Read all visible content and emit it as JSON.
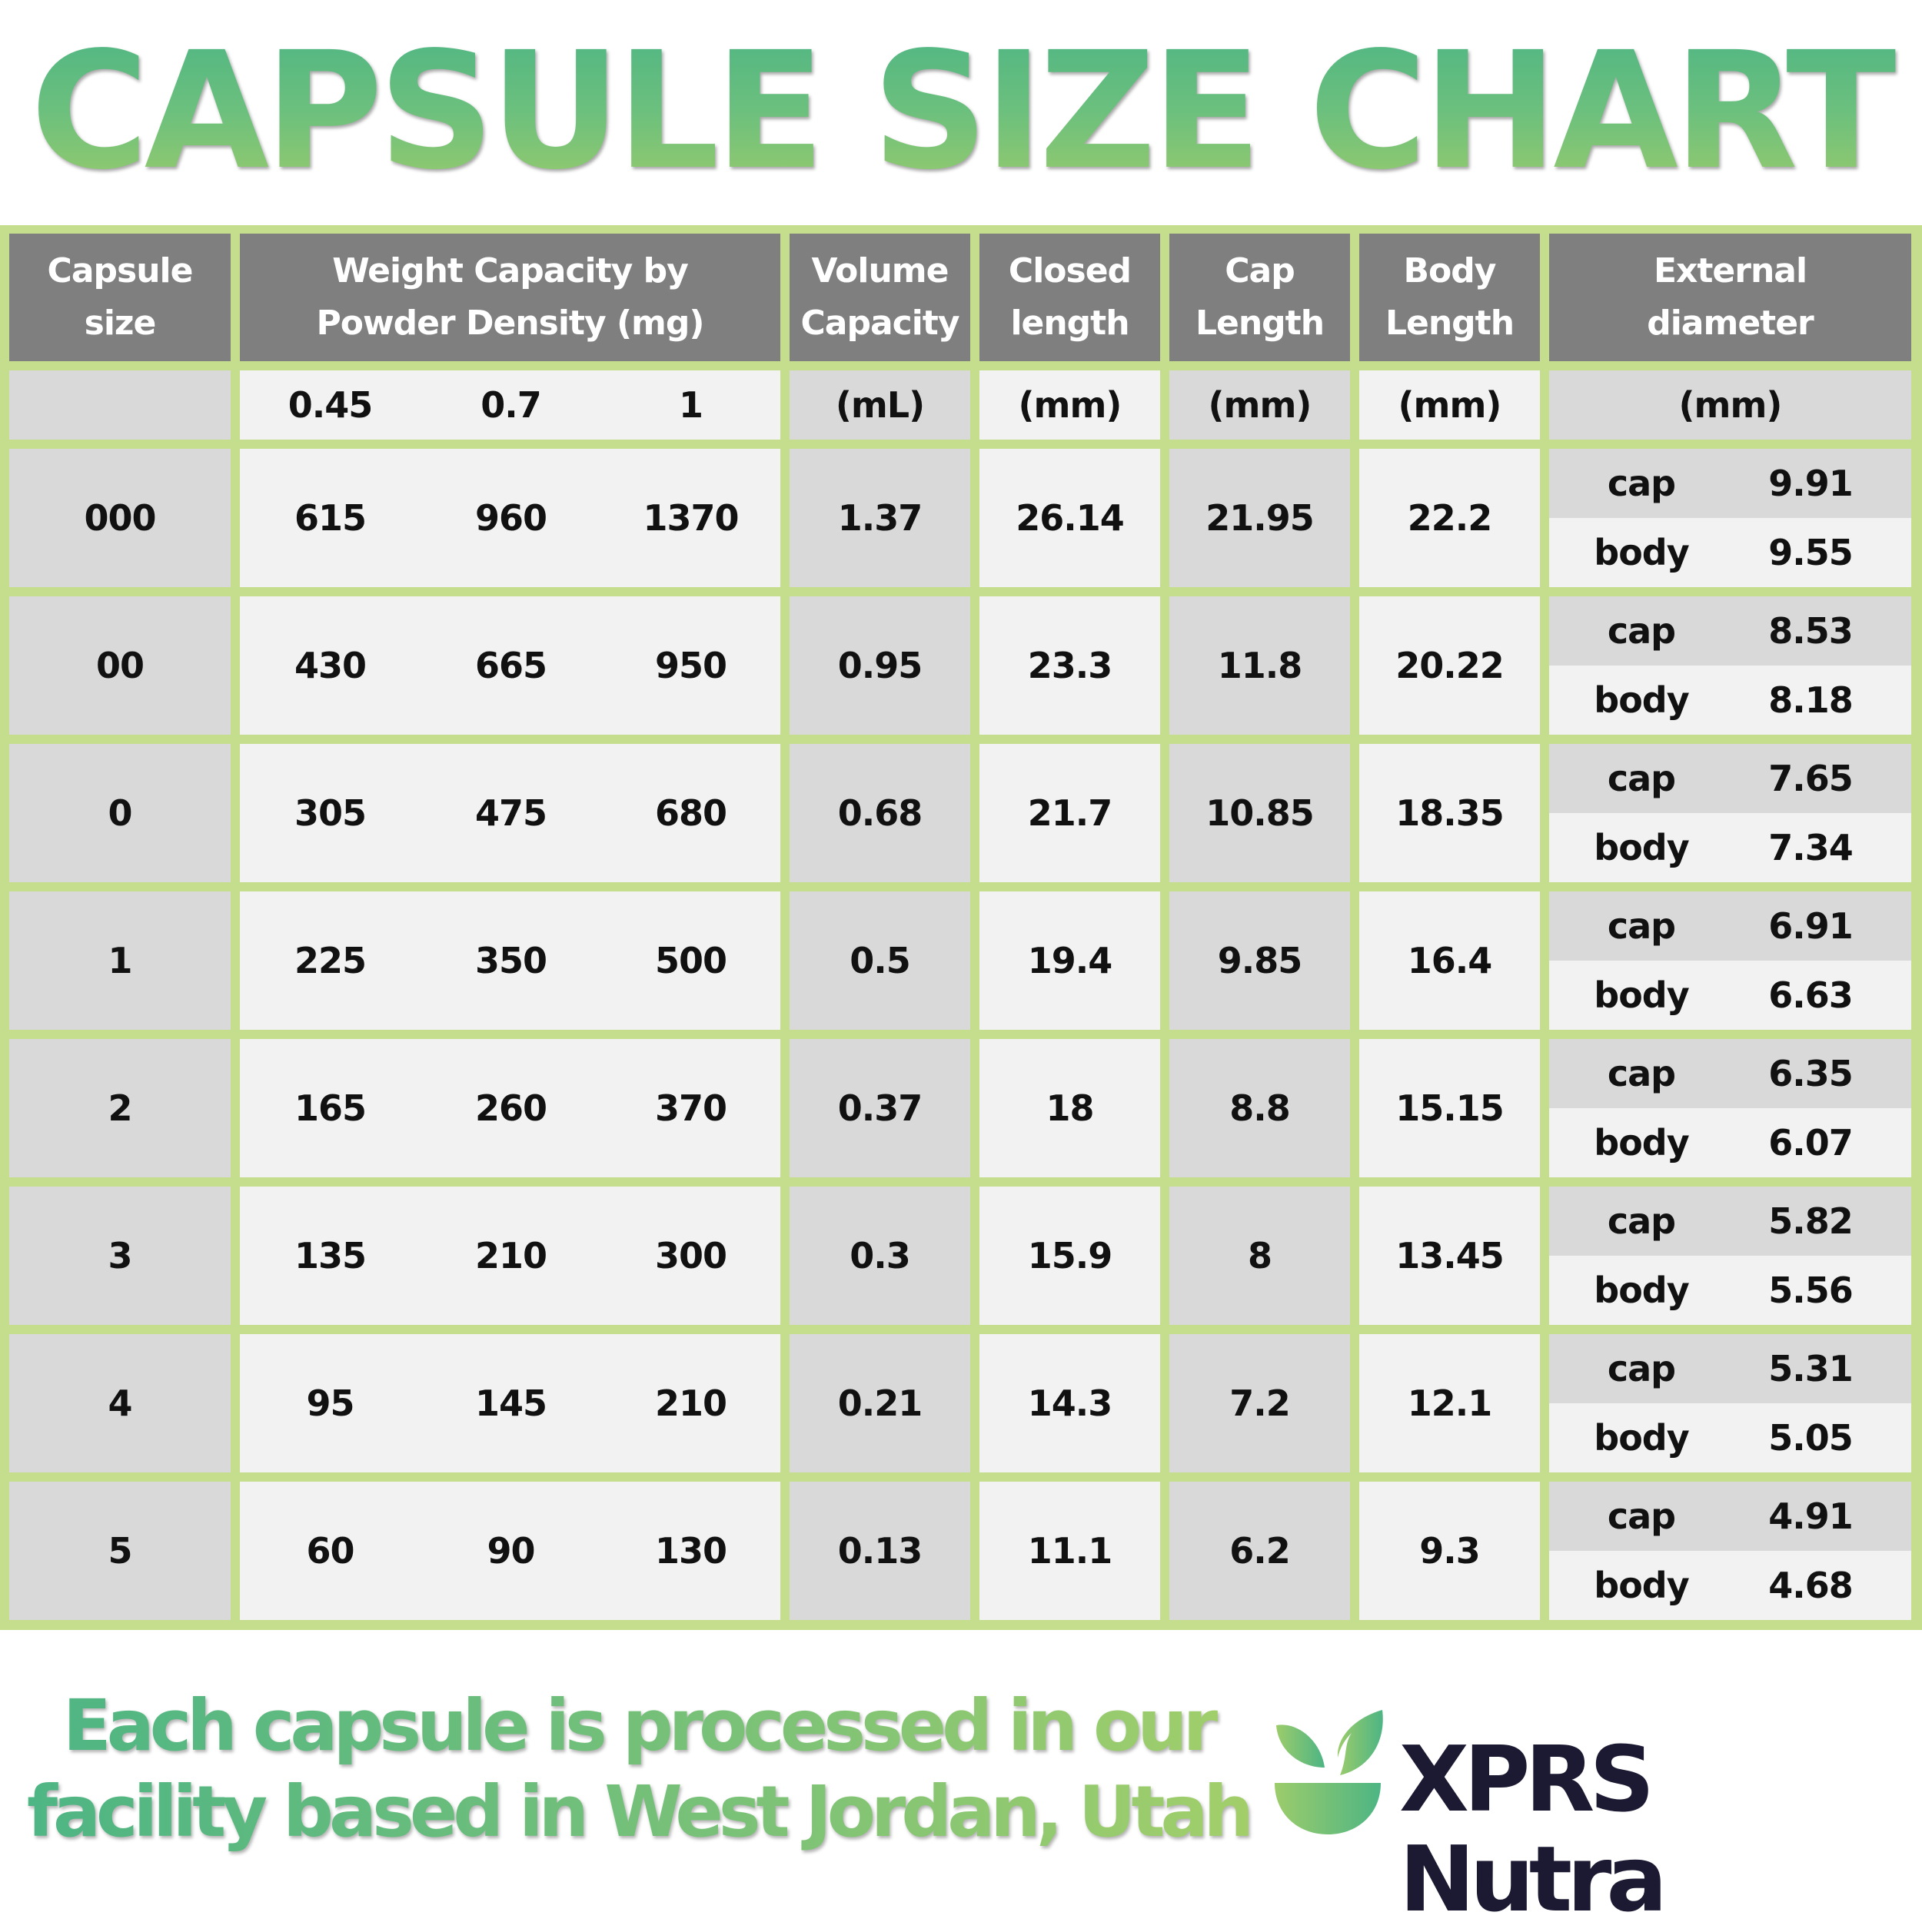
{
  "title": "CAPSULE SIZE CHART",
  "colors": {
    "border_green": "#c4de8d",
    "header_gray": "#7f7f7f",
    "cell_dark": "#d9d9d9",
    "cell_light": "#f2f2f2",
    "title_gradient_top": "#4db584",
    "title_gradient_bottom": "#9ccc6b",
    "brand_navy": "#1c1a33"
  },
  "headers": {
    "capsule_size": "Capsule size",
    "weight_line1": "Weight Capacity by",
    "weight_line2": "Powder Density (mg)",
    "volume_line1": "Volume",
    "volume_line2": "Capacity",
    "closed_line1": "Closed",
    "closed_line2": "length",
    "cap_line1": "Cap",
    "cap_line2": "Length",
    "body_line1": "Body",
    "body_line2": "Length",
    "diam_line1": "External",
    "diam_line2": "diameter"
  },
  "units": {
    "capsule_size": "",
    "density_1": "0.45",
    "density_2": "0.7",
    "density_3": "1",
    "volume": "(mL)",
    "closed": "(mm)",
    "cap": "(mm)",
    "body": "(mm)",
    "diam": "(mm)"
  },
  "labels": {
    "cap": "cap",
    "body": "body"
  },
  "rows": [
    {
      "size": "000",
      "w045": "615",
      "w07": "960",
      "w1": "1370",
      "vol": "1.37",
      "closed": "26.14",
      "cap_len": "21.95",
      "body_len": "22.2",
      "diam_cap": "9.91",
      "diam_body": "9.55"
    },
    {
      "size": "00",
      "w045": "430",
      "w07": "665",
      "w1": "950",
      "vol": "0.95",
      "closed": "23.3",
      "cap_len": "11.8",
      "body_len": "20.22",
      "diam_cap": "8.53",
      "diam_body": "8.18"
    },
    {
      "size": "0",
      "w045": "305",
      "w07": "475",
      "w1": "680",
      "vol": "0.68",
      "closed": "21.7",
      "cap_len": "10.85",
      "body_len": "18.35",
      "diam_cap": "7.65",
      "diam_body": "7.34"
    },
    {
      "size": "1",
      "w045": "225",
      "w07": "350",
      "w1": "500",
      "vol": "0.5",
      "closed": "19.4",
      "cap_len": "9.85",
      "body_len": "16.4",
      "diam_cap": "6.91",
      "diam_body": "6.63"
    },
    {
      "size": "2",
      "w045": "165",
      "w07": "260",
      "w1": "370",
      "vol": "0.37",
      "closed": "18",
      "cap_len": "8.8",
      "body_len": "15.15",
      "diam_cap": "6.35",
      "diam_body": "6.07"
    },
    {
      "size": "3",
      "w045": "135",
      "w07": "210",
      "w1": "300",
      "vol": "0.3",
      "closed": "15.9",
      "cap_len": "8",
      "body_len": "13.45",
      "diam_cap": "5.82",
      "diam_body": "5.56"
    },
    {
      "size": "4",
      "w045": "95",
      "w07": "145",
      "w1": "210",
      "vol": "0.21",
      "closed": "14.3",
      "cap_len": "7.2",
      "body_len": "12.1",
      "diam_cap": "5.31",
      "diam_body": "5.05"
    },
    {
      "size": "5",
      "w045": "60",
      "w07": "90",
      "w1": "130",
      "vol": "0.13",
      "closed": "11.1",
      "cap_len": "6.2",
      "body_len": "9.3",
      "diam_cap": "4.91",
      "diam_body": "4.68"
    }
  ],
  "footer": {
    "line1": "Each capsule is processed in our",
    "line2": "facility based in West Jordan, Utah",
    "brand": "XPRS Nutra",
    "logo_icon": "leaf-bowl-icon"
  }
}
